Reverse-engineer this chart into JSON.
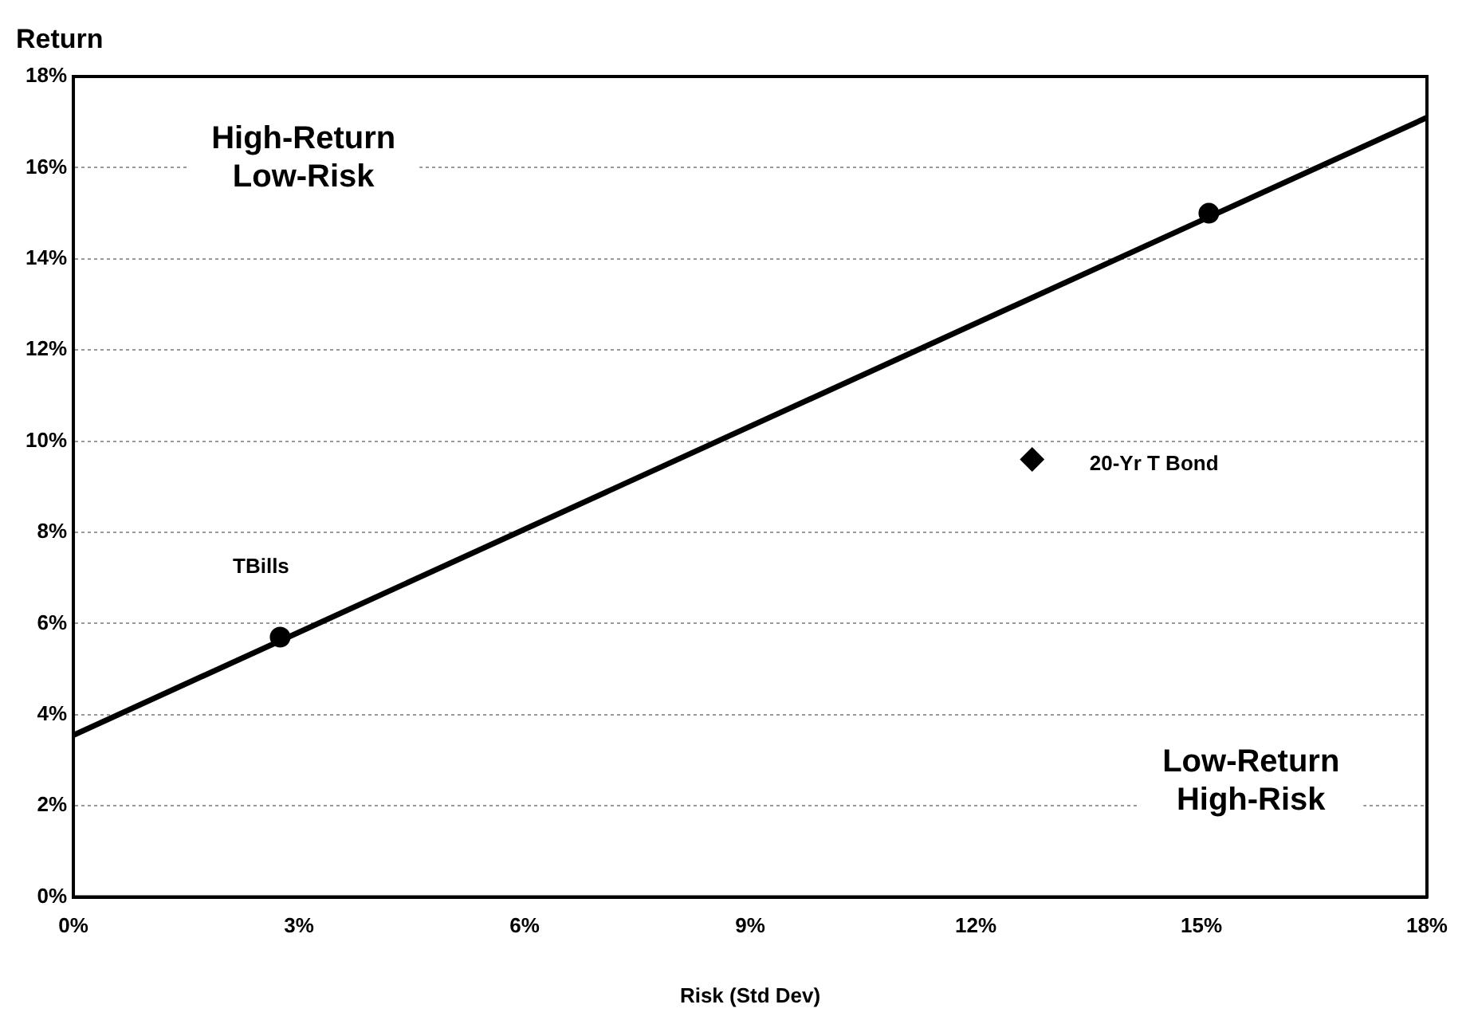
{
  "chart_data": {
    "type": "scatter",
    "xlabel": "Risk (Std Dev)",
    "ylabel": "Return",
    "series": [
      {
        "type": "line",
        "color": "#000000",
        "x": [
          0,
          18
        ],
        "values": [
          3.55,
          17.1
        ],
        "marker": "none",
        "line_style": "solid"
      },
      {
        "color": "#000000",
        "x": [
          2.75,
          15.1
        ],
        "values": [
          5.7,
          15.0
        ],
        "marker": "circle"
      },
      {
        "color": "#000000",
        "x": [
          12.75
        ],
        "values": [
          9.6
        ],
        "marker": "diamond"
      }
    ],
    "xlim": [
      0,
      18
    ],
    "xticks": [
      {
        "value": 0,
        "label": "0%"
      },
      {
        "value": 3,
        "label": "3%"
      },
      {
        "value": 6,
        "label": "6%"
      },
      {
        "value": 9,
        "label": "9%"
      },
      {
        "value": 12,
        "label": "12%"
      },
      {
        "value": 15,
        "label": "15%"
      },
      {
        "value": 18,
        "label": "18%"
      }
    ],
    "ylim": [
      0,
      18
    ],
    "yticks": [
      {
        "value": 0,
        "label": "0%"
      },
      {
        "value": 2,
        "label": "2%"
      },
      {
        "value": 4,
        "label": "4%"
      },
      {
        "value": 6,
        "label": "6%"
      },
      {
        "value": 8,
        "label": "8%"
      },
      {
        "value": 10,
        "label": "10%"
      },
      {
        "value": 12,
        "label": "12%"
      },
      {
        "value": 14,
        "label": "14%"
      },
      {
        "value": 16,
        "label": "16%"
      },
      {
        "value": 18,
        "label": "18%"
      }
    ],
    "grid": "y",
    "legend": false,
    "annotations": [
      "High-Return\nLow-Risk",
      "Low-Return\nHigh-Risk",
      {
        "text": "TBills",
        "x": 2.75,
        "y": 5.7
      },
      {
        "text": "20-Yr T Bond",
        "x": 12.75,
        "y": 9.6
      }
    ]
  }
}
